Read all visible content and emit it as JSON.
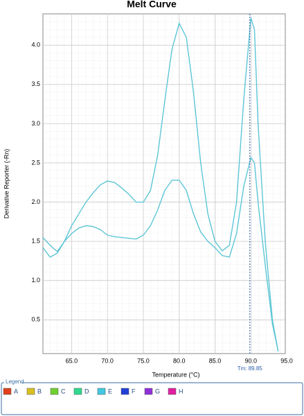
{
  "chart_data": {
    "type": "line",
    "title": "Melt Curve",
    "x_label": "Temperature (°C)",
    "y_label": "Derivative Reporter (-Rn)",
    "x": [
      61,
      62,
      63,
      64,
      65,
      66,
      67,
      68,
      69,
      70,
      71,
      72,
      73,
      74,
      75,
      76,
      77,
      78,
      79,
      80,
      81,
      82,
      83,
      84,
      85,
      86,
      87,
      88,
      89,
      90,
      90.5,
      91,
      92,
      93,
      93.8
    ],
    "series": [
      {
        "color": "#5cc6d6",
        "values": [
          1.55,
          1.45,
          1.37,
          1.5,
          1.7,
          1.85,
          2.0,
          2.12,
          2.22,
          2.27,
          2.25,
          2.18,
          2.1,
          2.0,
          2.0,
          2.15,
          2.6,
          3.3,
          3.95,
          4.28,
          4.1,
          3.4,
          2.5,
          1.85,
          1.5,
          1.38,
          1.45,
          2.0,
          3.3,
          4.35,
          4.2,
          3.0,
          1.5,
          0.5,
          0.1
        ]
      },
      {
        "color": "#5cc6d6",
        "values": [
          1.42,
          1.3,
          1.35,
          1.5,
          1.6,
          1.67,
          1.7,
          1.69,
          1.65,
          1.58,
          1.56,
          1.55,
          1.54,
          1.53,
          1.58,
          1.7,
          1.9,
          2.15,
          2.28,
          2.28,
          2.15,
          1.85,
          1.62,
          1.5,
          1.42,
          1.32,
          1.3,
          1.6,
          2.2,
          2.57,
          2.5,
          2.0,
          1.2,
          0.45,
          0.1
        ]
      }
    ],
    "xlim": [
      61,
      94.8
    ],
    "ylim": [
      0.07,
      4.4
    ],
    "xticks": [
      {
        "value": 65,
        "label": "65.0"
      },
      {
        "value": 70,
        "label": "70.0"
      },
      {
        "value": 75,
        "label": "75.0"
      },
      {
        "value": 80,
        "label": "80.0"
      },
      {
        "value": 85,
        "label": "85.0"
      },
      {
        "value": 90,
        "label": "90.0"
      },
      {
        "value": 95,
        "label": "95.0"
      }
    ],
    "yticks": [
      0.5,
      {
        "value": 1,
        "label": "1.0"
      },
      1.5,
      {
        "value": 2,
        "label": "2.0"
      },
      2.5,
      {
        "value": 3,
        "label": "3.0"
      },
      3.5,
      {
        "value": 4,
        "label": "4.0"
      }
    ],
    "grid": true,
    "tm": {
      "value": 89.85,
      "label": "Tm: 89.85",
      "color": "#2a5caa"
    },
    "legend_title": "Legend",
    "legend": [
      {
        "name": "A",
        "color": "#e0401e"
      },
      {
        "name": "B",
        "color": "#d8c020"
      },
      {
        "name": "C",
        "color": "#70d030"
      },
      {
        "name": "D",
        "color": "#30d890"
      },
      {
        "name": "E",
        "color": "#40c8e0"
      },
      {
        "name": "F",
        "color": "#2040d8"
      },
      {
        "name": "G",
        "color": "#9030d8"
      },
      {
        "name": "H",
        "color": "#e020a0"
      }
    ]
  }
}
